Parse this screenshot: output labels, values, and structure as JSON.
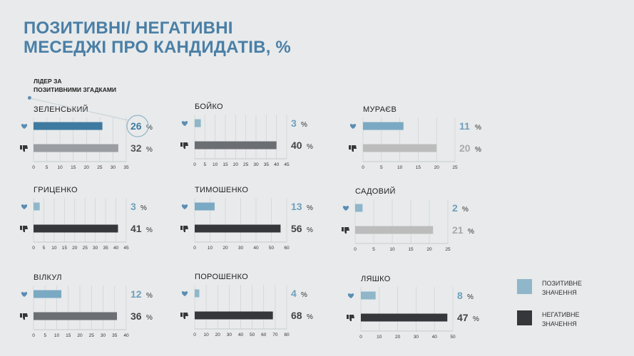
{
  "title": {
    "line1": "ПОЗИТИВНІ/ НЕГАТИВНІ",
    "line2": "МЕСЕДЖІ ПРО КАНДИДАТІВ, %"
  },
  "leader_note": {
    "line1": "ЛІДЕР ЗА",
    "line2": "ПОЗИТИВНИМИ ЗГАДКАМИ"
  },
  "legend": {
    "positive": {
      "label": "ПОЗИТИВНЕ ЗНАЧЕННЯ",
      "color": "#8fb6c9"
    },
    "negative": {
      "label": "НЕГАТИВНЕ ЗНАЧЕННЯ",
      "color": "#35373b"
    }
  },
  "icons": {
    "positive": "heart-icon",
    "negative": "thumbs-down-icon"
  },
  "chart_data": [
    {
      "type": "bar",
      "title": "ЗЕЛЕНСЬКИЙ",
      "categories": [
        "positive",
        "negative"
      ],
      "values": [
        26,
        32
      ],
      "unit": "%",
      "xlim": [
        0,
        35
      ],
      "ticks": [
        0,
        5,
        10,
        15,
        20,
        25,
        30,
        35
      ],
      "colors": [
        "#3f7aa0",
        "#9a9ea2"
      ],
      "highlight": true
    },
    {
      "type": "bar",
      "title": "БОЙКО",
      "categories": [
        "positive",
        "negative"
      ],
      "values": [
        3,
        40
      ],
      "unit": "%",
      "xlim": [
        0,
        45
      ],
      "ticks": [
        0,
        5,
        10,
        15,
        20,
        25,
        30,
        35,
        40,
        45
      ],
      "colors": [
        "#8fb6c9",
        "#6b6e73"
      ]
    },
    {
      "type": "bar",
      "title": "МУРАЄВ",
      "categories": [
        "positive",
        "negative"
      ],
      "values": [
        11,
        20
      ],
      "unit": "%",
      "xlim": [
        0,
        25
      ],
      "ticks": [
        0,
        5,
        10,
        15,
        20,
        25
      ],
      "colors": [
        "#7aa9c3",
        "#bcbcbc"
      ]
    },
    {
      "type": "bar",
      "title": "ГРИЦЕНКО",
      "categories": [
        "positive",
        "negative"
      ],
      "values": [
        3,
        41
      ],
      "unit": "%",
      "xlim": [
        0,
        45
      ],
      "ticks": [
        0,
        5,
        10,
        15,
        20,
        25,
        30,
        35,
        40,
        45
      ],
      "colors": [
        "#8fb6c9",
        "#35373b"
      ]
    },
    {
      "type": "bar",
      "title": "ТИМОШЕНКО",
      "categories": [
        "positive",
        "negative"
      ],
      "values": [
        13,
        56
      ],
      "unit": "%",
      "xlim": [
        0,
        60
      ],
      "ticks": [
        0,
        10,
        20,
        30,
        40,
        50,
        60
      ],
      "colors": [
        "#7aa9c3",
        "#35373b"
      ]
    },
    {
      "type": "bar",
      "title": "САДОВИЙ",
      "categories": [
        "positive",
        "negative"
      ],
      "values": [
        2,
        21
      ],
      "unit": "%",
      "xlim": [
        0,
        25
      ],
      "ticks": [
        0,
        5,
        10,
        15,
        20,
        25
      ],
      "colors": [
        "#8fb6c9",
        "#bcbcbc"
      ]
    },
    {
      "type": "bar",
      "title": "ВІЛКУЛ",
      "categories": [
        "positive",
        "negative"
      ],
      "values": [
        12,
        36
      ],
      "unit": "%",
      "xlim": [
        0,
        40
      ],
      "ticks": [
        0,
        5,
        10,
        15,
        20,
        25,
        30,
        35,
        40
      ],
      "colors": [
        "#7aa9c3",
        "#6b6e73"
      ]
    },
    {
      "type": "bar",
      "title": "ПОРОШЕНКО",
      "categories": [
        "positive",
        "negative"
      ],
      "values": [
        4,
        68
      ],
      "unit": "%",
      "xlim": [
        0,
        80
      ],
      "ticks": [
        0,
        10,
        20,
        30,
        40,
        50,
        60,
        70,
        80
      ],
      "colors": [
        "#8fb6c9",
        "#35373b"
      ]
    },
    {
      "type": "bar",
      "title": "ЛЯШКО",
      "categories": [
        "positive",
        "negative"
      ],
      "values": [
        8,
        47
      ],
      "unit": "%",
      "xlim": [
        0,
        50
      ],
      "ticks": [
        0,
        10,
        20,
        30,
        40,
        50
      ],
      "colors": [
        "#8fb6c9",
        "#35373b"
      ]
    }
  ]
}
